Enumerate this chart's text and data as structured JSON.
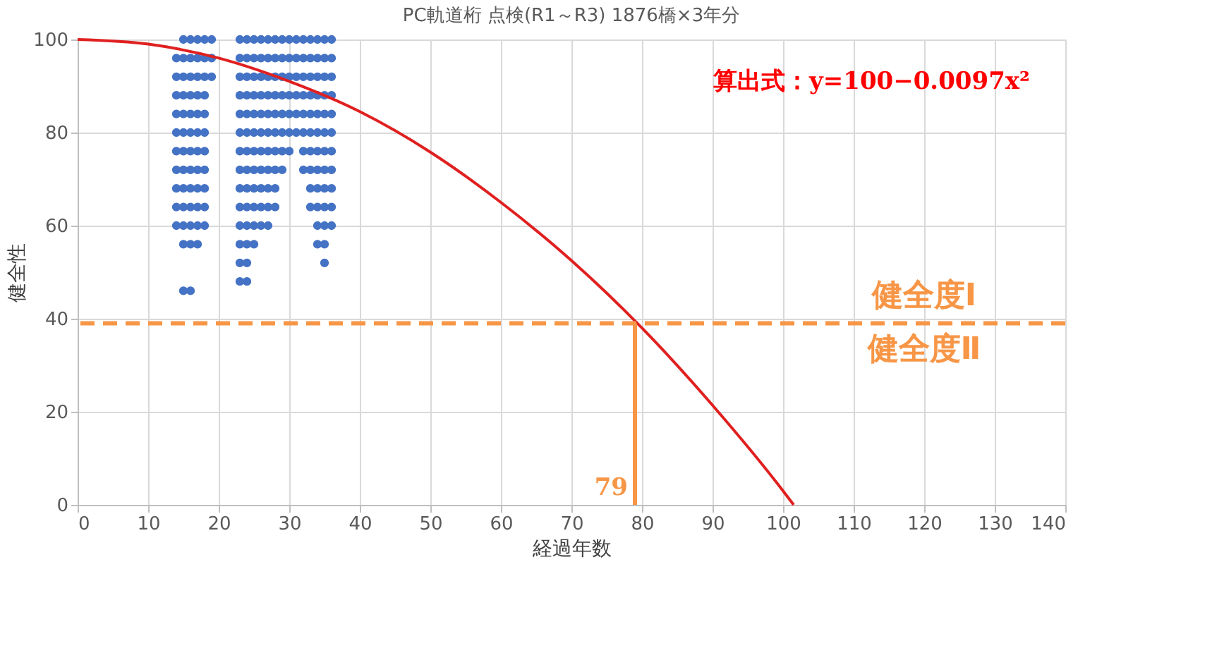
{
  "chart_data": {
    "type": "scatter",
    "title": "PC軌道桁 点検(R1～R3) 1876橋×3年分",
    "xlabel": "経過年数",
    "ylabel": "健全性",
    "xlim": [
      0,
      140
    ],
    "xticks": [
      0,
      10,
      20,
      30,
      40,
      50,
      60,
      70,
      80,
      90,
      100,
      110,
      120,
      130,
      140
    ],
    "ylim": [
      0,
      100
    ],
    "yticks": [
      0,
      20,
      40,
      60,
      80,
      100
    ],
    "grid": true,
    "marker": "circle",
    "series": [
      {
        "type": "scatter",
        "color": "#4472c4",
        "x": [
          14,
          14,
          14,
          14,
          14,
          14,
          14,
          14,
          14,
          14,
          15,
          15,
          15,
          15,
          15,
          15,
          15,
          15,
          15,
          15,
          15,
          15,
          15,
          16,
          16,
          16,
          16,
          16,
          16,
          16,
          16,
          16,
          16,
          16,
          16,
          16,
          17,
          17,
          17,
          17,
          17,
          17,
          17,
          17,
          17,
          17,
          17,
          17,
          18,
          18,
          18,
          18,
          18,
          18,
          18,
          18,
          18,
          18,
          18,
          19,
          19,
          19,
          23,
          23,
          23,
          23,
          23,
          23,
          23,
          23,
          23,
          23,
          23,
          23,
          23,
          23,
          24,
          24,
          24,
          24,
          24,
          24,
          24,
          24,
          24,
          24,
          24,
          24,
          24,
          24,
          25,
          25,
          25,
          25,
          25,
          25,
          25,
          25,
          25,
          25,
          25,
          25,
          26,
          26,
          26,
          26,
          26,
          26,
          26,
          26,
          26,
          26,
          26,
          27,
          27,
          27,
          27,
          27,
          27,
          27,
          27,
          27,
          27,
          27,
          28,
          28,
          28,
          28,
          28,
          28,
          28,
          28,
          28,
          28,
          29,
          29,
          29,
          29,
          29,
          29,
          29,
          29,
          30,
          30,
          30,
          30,
          30,
          30,
          30,
          31,
          31,
          31,
          31,
          31,
          31,
          32,
          32,
          32,
          32,
          32,
          32,
          32,
          32,
          33,
          33,
          33,
          33,
          33,
          33,
          33,
          33,
          33,
          33,
          34,
          34,
          34,
          34,
          34,
          34,
          34,
          34,
          34,
          34,
          34,
          34,
          35,
          35,
          35,
          35,
          35,
          35,
          35,
          35,
          35,
          35,
          35,
          35,
          35,
          36,
          36,
          36,
          36,
          36,
          36,
          36,
          36,
          36,
          36,
          36
        ],
        "values": [
          60,
          64,
          68,
          72,
          76,
          80,
          84,
          88,
          92,
          96,
          46,
          56,
          60,
          64,
          68,
          72,
          76,
          80,
          84,
          88,
          92,
          96,
          100,
          46,
          56,
          60,
          64,
          68,
          72,
          76,
          80,
          84,
          88,
          92,
          96,
          100,
          56,
          60,
          64,
          68,
          72,
          76,
          80,
          84,
          88,
          92,
          96,
          100,
          60,
          64,
          68,
          72,
          76,
          80,
          84,
          88,
          92,
          96,
          100,
          92,
          96,
          100,
          48,
          52,
          56,
          60,
          64,
          68,
          72,
          76,
          80,
          84,
          88,
          92,
          96,
          100,
          48,
          52,
          56,
          60,
          64,
          68,
          72,
          76,
          80,
          84,
          88,
          92,
          96,
          100,
          56,
          60,
          64,
          68,
          72,
          76,
          80,
          84,
          88,
          92,
          96,
          100,
          60,
          64,
          68,
          72,
          76,
          80,
          84,
          88,
          92,
          96,
          100,
          60,
          64,
          68,
          72,
          76,
          80,
          84,
          88,
          92,
          96,
          100,
          64,
          68,
          72,
          76,
          80,
          84,
          88,
          92,
          96,
          100,
          72,
          76,
          80,
          84,
          88,
          92,
          96,
          100,
          76,
          80,
          84,
          88,
          92,
          96,
          100,
          80,
          84,
          88,
          92,
          96,
          100,
          72,
          76,
          80,
          84,
          88,
          92,
          96,
          100,
          64,
          68,
          72,
          76,
          80,
          84,
          88,
          92,
          96,
          100,
          56,
          60,
          64,
          68,
          72,
          76,
          80,
          84,
          88,
          92,
          96,
          100,
          52,
          56,
          60,
          64,
          68,
          72,
          76,
          80,
          84,
          88,
          92,
          96,
          100,
          60,
          64,
          68,
          72,
          76,
          80,
          84,
          88,
          92,
          96,
          100
        ]
      },
      {
        "type": "line",
        "color": "#e02020",
        "marker": "none",
        "x": [
          0,
          10,
          20,
          30,
          40,
          50,
          60,
          70,
          80,
          90,
          100,
          101.5
        ],
        "values": [
          100,
          99,
          96,
          91,
          84.5,
          75.8,
          65,
          52.5,
          38,
          21.4,
          3,
          0
        ]
      }
    ],
    "ref_lines": [
      {
        "axis": "y",
        "value": 39,
        "color": "#f79646",
        "line_style": "dashed"
      },
      {
        "axis": "x",
        "value": 79,
        "label": "79",
        "color": "#f79646",
        "line_style": "solid"
      }
    ],
    "annotations": [
      "算出式：y=100−0.0097x²",
      "健全度Ⅰ",
      "健全度Ⅱ"
    ]
  }
}
